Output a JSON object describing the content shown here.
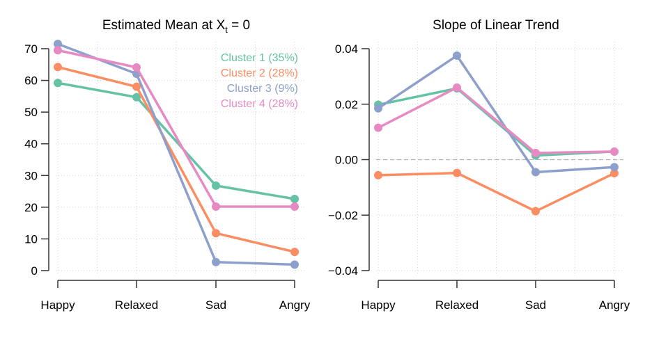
{
  "chart_data": [
    {
      "type": "line",
      "title": "Estimated Mean at  X",
      "title_subscript": "t",
      "title_suffix": " = 0",
      "xlabel": "",
      "ylabel": "",
      "categories": [
        "Happy",
        "Relaxed",
        "Sad",
        "Angry"
      ],
      "ylim": [
        0,
        70
      ],
      "yticks": [
        0,
        10,
        20,
        30,
        40,
        50,
        60,
        70
      ],
      "ytick_labels": [
        "0",
        "10",
        "20",
        "30",
        "40",
        "50",
        "60",
        "70"
      ],
      "grid": true,
      "reference_line": null,
      "legend_position": "top-right",
      "series": [
        {
          "name": "Cluster 1 (35%)",
          "color": "#66c2a5",
          "values": [
            59.2,
            54.7,
            26.8,
            22.6
          ]
        },
        {
          "name": "Cluster 2 (28%)",
          "color": "#fc8d62",
          "values": [
            64.2,
            58.0,
            11.8,
            5.9
          ]
        },
        {
          "name": "Cluster 3 (9%)",
          "color": "#8da0cb",
          "values": [
            71.5,
            62.1,
            2.7,
            1.9
          ]
        },
        {
          "name": "Cluster 4 (28%)",
          "color": "#e78ac3",
          "values": [
            69.5,
            64.1,
            20.2,
            20.2
          ]
        }
      ]
    },
    {
      "type": "line",
      "title": "Slope of Linear Trend",
      "xlabel": "",
      "ylabel": "",
      "categories": [
        "Happy",
        "Relaxed",
        "Sad",
        "Angry"
      ],
      "ylim": [
        -0.04,
        0.04
      ],
      "yticks": [
        -0.04,
        -0.02,
        0.0,
        0.02,
        0.04
      ],
      "ytick_labels": [
        "−0.04",
        "−0.02",
        "0.00",
        "0.02",
        "0.04"
      ],
      "grid": true,
      "reference_line": 0,
      "legend_position": "none",
      "series": [
        {
          "name": "Cluster 1 (35%)",
          "color": "#66c2a5",
          "values": [
            0.0198,
            0.0257,
            0.0015,
            0.0029
          ]
        },
        {
          "name": "Cluster 2 (28%)",
          "color": "#fc8d62",
          "values": [
            -0.0056,
            -0.0048,
            -0.0186,
            -0.0049
          ]
        },
        {
          "name": "Cluster 3 (9%)",
          "color": "#8da0cb",
          "values": [
            0.0185,
            0.0375,
            -0.0045,
            -0.0027
          ]
        },
        {
          "name": "Cluster 4 (28%)",
          "color": "#e78ac3",
          "values": [
            0.0115,
            0.026,
            0.0024,
            0.0029
          ]
        }
      ]
    }
  ]
}
